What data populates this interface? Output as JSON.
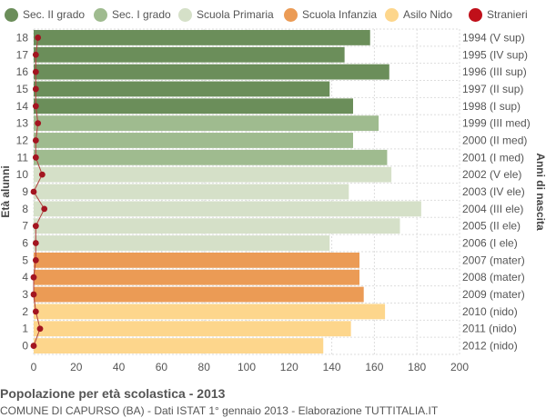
{
  "legend": [
    {
      "label": "Sec. II grado",
      "color": "#6b8e5a"
    },
    {
      "label": "Sec. I grado",
      "color": "#9fbb8f"
    },
    {
      "label": "Scuola Primaria",
      "color": "#d5e0c8"
    },
    {
      "label": "Scuola Infanzia",
      "color": "#eb9b55"
    },
    {
      "label": "Asilo Nido",
      "color": "#fdd68c"
    },
    {
      "label": "Stranieri",
      "color": "#c0101a"
    }
  ],
  "footer": {
    "title": "Popolazione per età scolastica - 2013",
    "subtitle": "COMUNE DI CAPURSO (BA) - Dati ISTAT 1° gennaio 2013 - Elaborazione TUTTITALIA.IT"
  },
  "chart_data": {
    "type": "bar",
    "orientation": "horizontal",
    "ylabel": "Età alunni",
    "y2label": "Anni di nascita",
    "xlim": [
      0,
      200
    ],
    "xticks": [
      0,
      20,
      40,
      60,
      80,
      100,
      120,
      140,
      160,
      180,
      200
    ],
    "grid": true,
    "legend_position": "top",
    "categories": [
      "18",
      "17",
      "16",
      "15",
      "14",
      "13",
      "12",
      "11",
      "10",
      "9",
      "8",
      "7",
      "6",
      "5",
      "4",
      "3",
      "2",
      "1",
      "0"
    ],
    "birth_years": [
      "1994 (V sup)",
      "1995 (IV sup)",
      "1996 (III sup)",
      "1997 (II sup)",
      "1998 (I sup)",
      "1999 (III med)",
      "2000 (II med)",
      "2001 (I med)",
      "2002 (V ele)",
      "2003 (IV ele)",
      "2004 (III ele)",
      "2005 (II ele)",
      "2006 (I ele)",
      "2007 (mater)",
      "2008 (mater)",
      "2009 (mater)",
      "2010 (nido)",
      "2011 (nido)",
      "2012 (nido)"
    ],
    "groups": [
      "Sec. II grado",
      "Sec. II grado",
      "Sec. II grado",
      "Sec. II grado",
      "Sec. II grado",
      "Sec. I grado",
      "Sec. I grado",
      "Sec. I grado",
      "Scuola Primaria",
      "Scuola Primaria",
      "Scuola Primaria",
      "Scuola Primaria",
      "Scuola Primaria",
      "Scuola Infanzia",
      "Scuola Infanzia",
      "Scuola Infanzia",
      "Asilo Nido",
      "Asilo Nido",
      "Asilo Nido"
    ],
    "series": [
      {
        "name": "Popolazione",
        "values": [
          158,
          146,
          167,
          139,
          150,
          162,
          150,
          166,
          168,
          148,
          182,
          172,
          139,
          153,
          153,
          155,
          165,
          149,
          136
        ]
      },
      {
        "name": "Stranieri",
        "values": [
          2,
          1,
          1,
          1,
          1,
          2,
          1,
          1,
          4,
          0,
          5,
          1,
          1,
          1,
          0,
          0,
          1,
          3,
          0
        ]
      }
    ]
  }
}
